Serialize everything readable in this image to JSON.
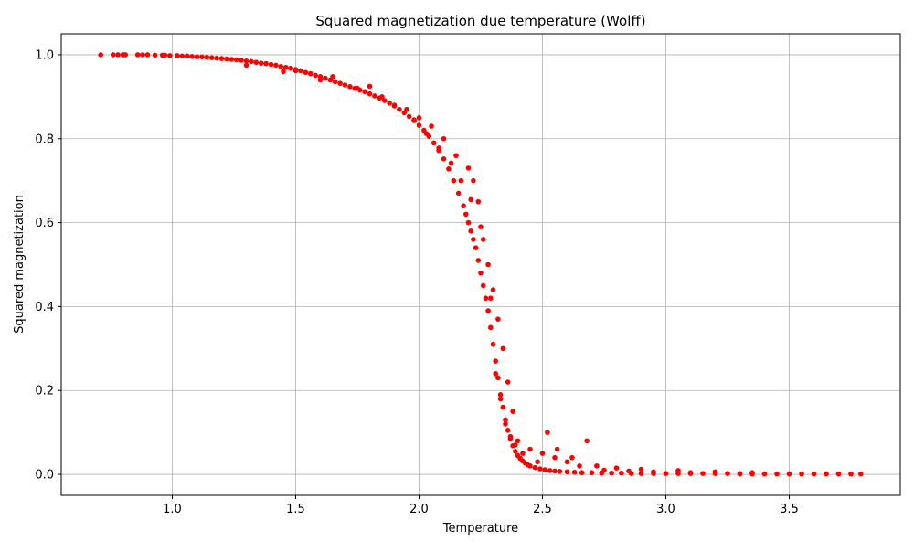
{
  "chart_data": {
    "type": "scatter",
    "title": "Squared magnetization due temperature (Wolff)",
    "xlabel": "Temperature",
    "ylabel": "Squared magnetization",
    "xlim": [
      0.55,
      3.95
    ],
    "ylim": [
      -0.05,
      1.05
    ],
    "xticks": [
      1.0,
      1.5,
      2.0,
      2.5,
      3.0,
      3.5
    ],
    "xtick_labels": [
      "1.0",
      "1.5",
      "2.0",
      "2.5",
      "3.0",
      "3.5"
    ],
    "yticks": [
      0.0,
      0.2,
      0.4,
      0.6,
      0.8,
      1.0
    ],
    "ytick_labels": [
      "0.0",
      "0.2",
      "0.4",
      "0.6",
      "0.8",
      "1.0"
    ],
    "grid": true,
    "marker_color": "#ff0000",
    "series": [
      {
        "x": [
          0.71,
          0.76,
          0.78,
          0.8,
          0.81,
          0.86,
          0.88,
          0.9,
          0.93,
          0.96,
          0.97,
          0.99,
          1.02,
          1.04,
          1.06,
          1.08,
          1.1,
          1.12,
          1.14,
          1.16,
          1.18,
          1.2,
          1.22,
          1.24,
          1.26,
          1.28,
          1.3,
          1.32,
          1.34,
          1.36,
          1.38,
          1.4,
          1.42,
          1.44,
          1.46,
          1.48,
          1.5,
          1.52,
          1.54,
          1.56,
          1.58,
          1.6,
          1.62,
          1.64,
          1.66,
          1.68,
          1.7,
          1.72,
          1.74,
          1.76,
          1.78,
          1.8,
          1.82,
          1.84,
          1.86,
          1.88,
          1.9,
          1.92,
          1.94,
          1.96,
          1.98,
          2.0,
          2.02,
          2.04,
          2.06,
          2.08,
          2.1,
          2.12,
          2.14,
          2.16,
          2.18,
          2.19,
          2.2,
          2.21,
          2.22,
          2.23,
          2.24,
          2.25,
          2.26,
          2.27,
          2.28,
          2.29,
          2.3,
          2.31,
          2.32,
          2.33,
          2.34,
          2.35,
          2.36,
          2.37,
          2.38,
          2.39,
          2.4,
          2.41,
          2.42,
          2.43,
          2.44,
          2.45,
          2.47,
          2.49,
          2.51,
          2.53,
          2.55,
          2.57,
          2.6,
          2.63,
          2.66,
          2.7,
          2.74,
          2.78,
          2.82,
          2.86,
          2.9,
          2.95,
          3.0,
          3.05,
          3.1,
          3.15,
          3.2,
          3.25,
          3.3,
          3.35,
          3.4,
          3.45,
          3.5,
          3.55,
          3.6,
          3.65,
          3.7,
          3.75,
          3.79,
          1.3,
          1.45,
          1.6,
          1.75,
          1.85,
          1.95,
          2.0,
          2.05,
          2.1,
          2.15,
          2.2,
          2.22,
          2.24,
          2.26,
          2.28,
          2.3,
          2.32,
          2.34,
          2.36,
          2.38,
          2.4,
          2.45,
          2.5,
          2.55,
          2.6,
          2.65,
          2.75,
          2.85,
          2.95,
          3.1,
          3.3,
          1.5,
          1.65,
          1.8,
          1.9,
          1.98,
          2.03,
          2.08,
          2.13,
          2.17,
          2.21,
          2.25,
          2.29,
          2.31,
          2.33,
          2.35,
          2.37,
          2.39,
          2.42,
          2.48,
          2.52,
          2.56,
          2.62,
          2.68,
          2.72,
          2.8,
          2.9,
          3.05,
          3.2,
          3.35
        ],
        "y": [
          1.0,
          1.0,
          1.0,
          1.0,
          1.0,
          1.0,
          1.0,
          1.0,
          0.999,
          0.999,
          0.999,
          0.998,
          0.998,
          0.997,
          0.997,
          0.996,
          0.995,
          0.995,
          0.994,
          0.993,
          0.992,
          0.991,
          0.99,
          0.989,
          0.988,
          0.987,
          0.985,
          0.984,
          0.982,
          0.98,
          0.979,
          0.977,
          0.975,
          0.972,
          0.97,
          0.968,
          0.965,
          0.962,
          0.958,
          0.955,
          0.951,
          0.948,
          0.944,
          0.94,
          0.936,
          0.932,
          0.928,
          0.924,
          0.92,
          0.916,
          0.912,
          0.907,
          0.902,
          0.897,
          0.891,
          0.885,
          0.878,
          0.87,
          0.862,
          0.853,
          0.843,
          0.832,
          0.82,
          0.806,
          0.79,
          0.772,
          0.752,
          0.728,
          0.7,
          0.67,
          0.64,
          0.62,
          0.6,
          0.58,
          0.56,
          0.54,
          0.51,
          0.48,
          0.45,
          0.42,
          0.39,
          0.35,
          0.31,
          0.27,
          0.23,
          0.19,
          0.16,
          0.13,
          0.105,
          0.085,
          0.068,
          0.055,
          0.045,
          0.038,
          0.032,
          0.027,
          0.023,
          0.02,
          0.016,
          0.013,
          0.011,
          0.009,
          0.008,
          0.007,
          0.006,
          0.005,
          0.004,
          0.004,
          0.003,
          0.003,
          0.003,
          0.002,
          0.002,
          0.002,
          0.002,
          0.002,
          0.002,
          0.002,
          0.002,
          0.002,
          0.001,
          0.001,
          0.001,
          0.001,
          0.001,
          0.001,
          0.001,
          0.001,
          0.001,
          0.001,
          0.001,
          0.975,
          0.96,
          0.94,
          0.92,
          0.9,
          0.87,
          0.85,
          0.83,
          0.8,
          0.76,
          0.73,
          0.7,
          0.65,
          0.56,
          0.5,
          0.44,
          0.37,
          0.3,
          0.22,
          0.15,
          0.08,
          0.06,
          0.05,
          0.04,
          0.03,
          0.02,
          0.01,
          0.008,
          0.006,
          0.004,
          0.002,
          0.962,
          0.948,
          0.925,
          0.88,
          0.845,
          0.812,
          0.778,
          0.742,
          0.7,
          0.655,
          0.59,
          0.42,
          0.24,
          0.18,
          0.12,
          0.09,
          0.07,
          0.05,
          0.03,
          0.1,
          0.06,
          0.04,
          0.08,
          0.02,
          0.015,
          0.012,
          0.009,
          0.006,
          0.004
        ]
      }
    ]
  }
}
